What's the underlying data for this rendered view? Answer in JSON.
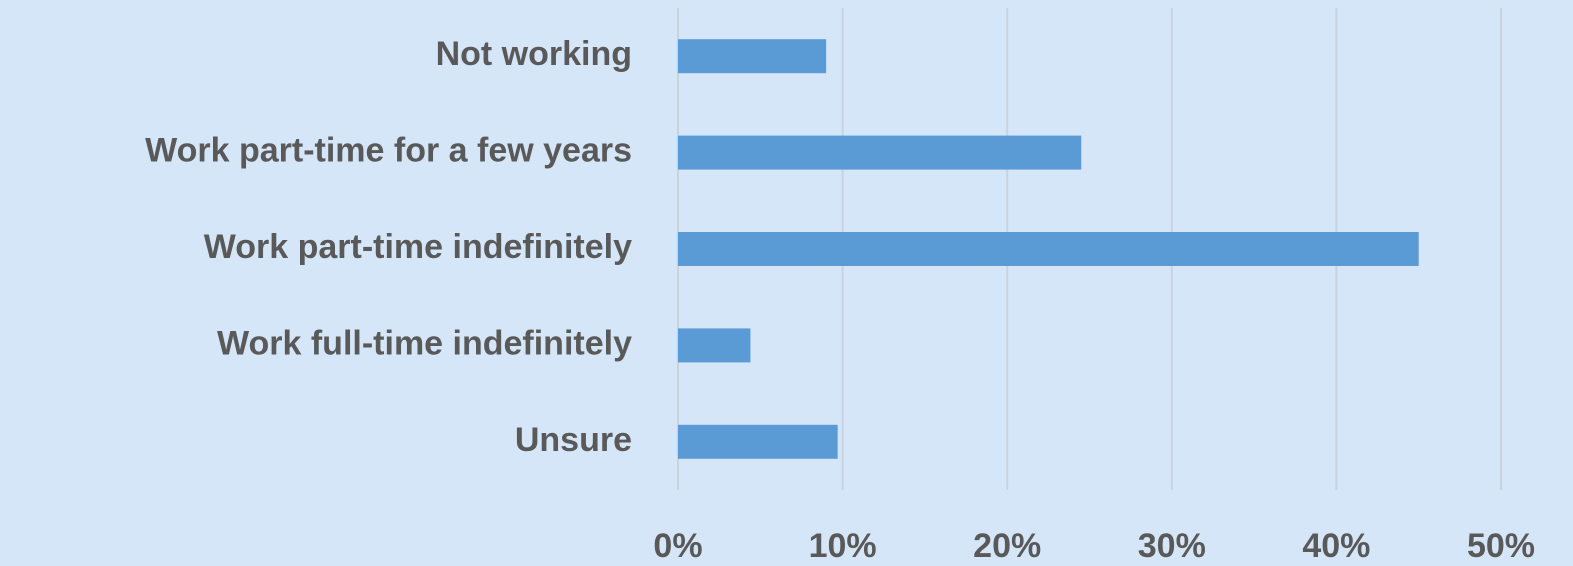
{
  "chart_data": {
    "type": "bar",
    "orientation": "horizontal",
    "categories": [
      "Not working",
      "Work part-time for a few years",
      "Work part-time indefinitely",
      "Work full-time indefinitely",
      "Unsure"
    ],
    "values": [
      9.0,
      24.5,
      45.0,
      4.4,
      9.7
    ],
    "color": "#5b9bd5",
    "xlim": [
      0,
      50
    ],
    "xticks": [
      {
        "value": 0,
        "label": "0%"
      },
      {
        "value": 10,
        "label": "10%"
      },
      {
        "value": 20,
        "label": "20%"
      },
      {
        "value": 30,
        "label": "30%"
      },
      {
        "value": 40,
        "label": "40%"
      },
      {
        "value": 50,
        "label": "50%"
      }
    ],
    "grid": true
  }
}
